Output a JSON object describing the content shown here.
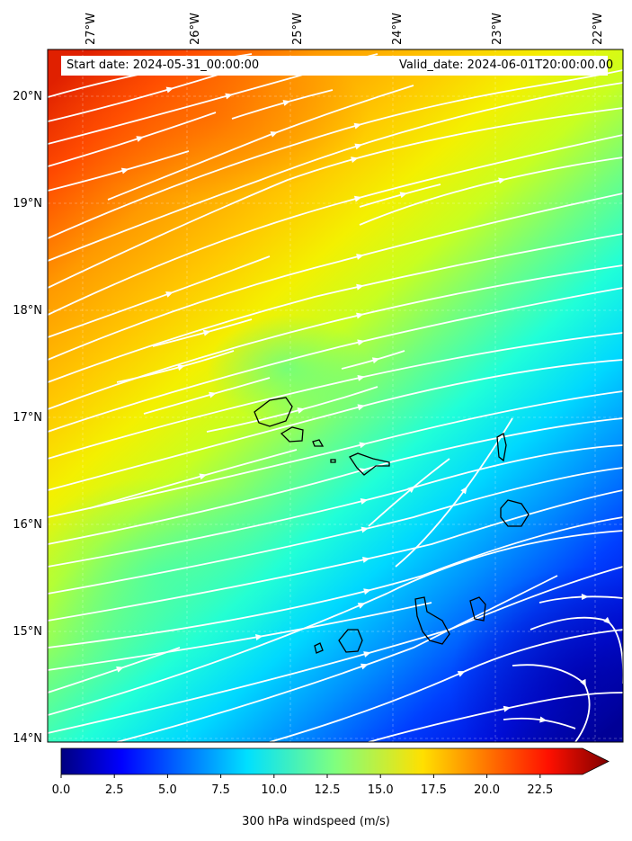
{
  "header": {
    "start_date": "Start date: 2024-05-31_00:00:00",
    "valid_date": "Valid_date: 2024-06-01T20:00:00.00"
  },
  "map": {
    "lon_labels": [
      "27°W",
      "26°W",
      "25°W",
      "24°W",
      "23°W",
      "22°W"
    ],
    "lat_labels": [
      "20°N",
      "19°N",
      "18°N",
      "17°N",
      "16°N",
      "15°N",
      "14°N"
    ],
    "region": "Cape Verde islands"
  },
  "colorbar": {
    "ticks": [
      "0.0",
      "2.5",
      "5.0",
      "7.5",
      "10.0",
      "12.5",
      "15.0",
      "17.5",
      "20.0",
      "22.5"
    ],
    "label": "300 hPa windspeed (m/s)",
    "colormap": "jet",
    "extend": "max"
  }
}
